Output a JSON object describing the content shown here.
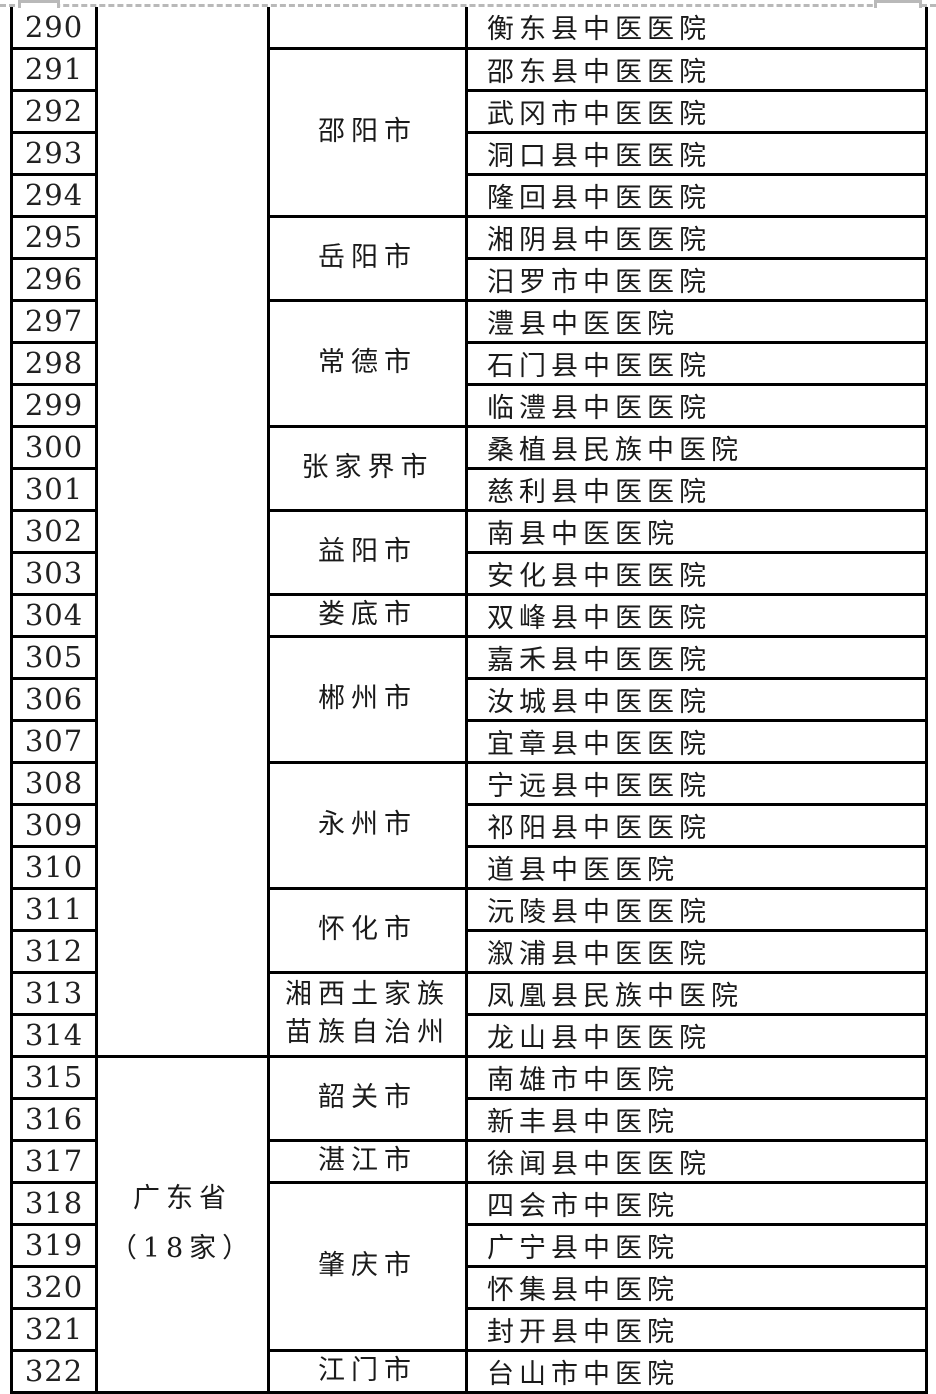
{
  "page": {
    "colors": {
      "border": "#000000",
      "page_break_gray": "#b9b9b9",
      "text": "#1a1a1a",
      "background": "#ffffff"
    }
  },
  "table": {
    "rows": [
      {
        "no": "290",
        "hospital": "衡东县中医医院"
      },
      {
        "no": "291",
        "hospital": "邵东县中医医院"
      },
      {
        "no": "292",
        "hospital": "武冈市中医医院"
      },
      {
        "no": "293",
        "hospital": "洞口县中医医院"
      },
      {
        "no": "294",
        "hospital": "隆回县中医医院"
      },
      {
        "no": "295",
        "hospital": "湘阴县中医医院"
      },
      {
        "no": "296",
        "hospital": "汨罗市中医医院"
      },
      {
        "no": "297",
        "hospital": "澧县中医医院"
      },
      {
        "no": "298",
        "hospital": "石门县中医医院"
      },
      {
        "no": "299",
        "hospital": "临澧县中医医院"
      },
      {
        "no": "300",
        "hospital": "桑植县民族中医院"
      },
      {
        "no": "301",
        "hospital": "慈利县中医医院"
      },
      {
        "no": "302",
        "hospital": "南县中医医院"
      },
      {
        "no": "303",
        "hospital": "安化县中医医院"
      },
      {
        "no": "304",
        "hospital": "双峰县中医医院"
      },
      {
        "no": "305",
        "hospital": "嘉禾县中医医院"
      },
      {
        "no": "306",
        "hospital": "汝城县中医医院"
      },
      {
        "no": "307",
        "hospital": "宜章县中医医院"
      },
      {
        "no": "308",
        "hospital": "宁远县中医医院"
      },
      {
        "no": "309",
        "hospital": "祁阳县中医医院"
      },
      {
        "no": "310",
        "hospital": "道县中医医院"
      },
      {
        "no": "311",
        "hospital": "沅陵县中医医院"
      },
      {
        "no": "312",
        "hospital": "溆浦县中医医院"
      },
      {
        "no": "313",
        "hospital": "凤凰县民族中医院"
      },
      {
        "no": "314",
        "hospital": "龙山县中医医院"
      },
      {
        "no": "315",
        "hospital": "南雄市中医院"
      },
      {
        "no": "316",
        "hospital": "新丰县中医院"
      },
      {
        "no": "317",
        "hospital": "徐闻县中医医院"
      },
      {
        "no": "318",
        "hospital": "四会市中医院"
      },
      {
        "no": "319",
        "hospital": "广宁县中医院"
      },
      {
        "no": "320",
        "hospital": "怀集县中医院"
      },
      {
        "no": "321",
        "hospital": "封开县中医院"
      },
      {
        "no": "322",
        "hospital": "台山市中医院"
      }
    ],
    "province_cells": [
      {
        "start": 0,
        "span": 25,
        "lines": []
      },
      {
        "start": 25,
        "span": 8,
        "lines": [
          "广东省",
          "（18家）"
        ]
      }
    ],
    "city_cells": [
      {
        "start": 0,
        "span": 1,
        "lines": []
      },
      {
        "start": 1,
        "span": 4,
        "lines": [
          "邵阳市"
        ]
      },
      {
        "start": 5,
        "span": 2,
        "lines": [
          "岳阳市"
        ]
      },
      {
        "start": 7,
        "span": 3,
        "lines": [
          "常德市"
        ]
      },
      {
        "start": 10,
        "span": 2,
        "lines": [
          "张家界市"
        ]
      },
      {
        "start": 12,
        "span": 2,
        "lines": [
          "益阳市"
        ]
      },
      {
        "start": 14,
        "span": 1,
        "lines": [
          "娄底市"
        ]
      },
      {
        "start": 15,
        "span": 3,
        "lines": [
          "郴州市"
        ]
      },
      {
        "start": 18,
        "span": 3,
        "lines": [
          "永州市"
        ]
      },
      {
        "start": 21,
        "span": 2,
        "lines": [
          "怀化市"
        ]
      },
      {
        "start": 23,
        "span": 2,
        "lines": [
          "湘西土家族",
          "苗族自治州"
        ]
      },
      {
        "start": 25,
        "span": 2,
        "lines": [
          "韶关市"
        ]
      },
      {
        "start": 27,
        "span": 1,
        "lines": [
          "湛江市"
        ]
      },
      {
        "start": 28,
        "span": 4,
        "lines": [
          "肇庆市"
        ]
      },
      {
        "start": 32,
        "span": 1,
        "lines": [
          "江门市"
        ]
      }
    ]
  }
}
